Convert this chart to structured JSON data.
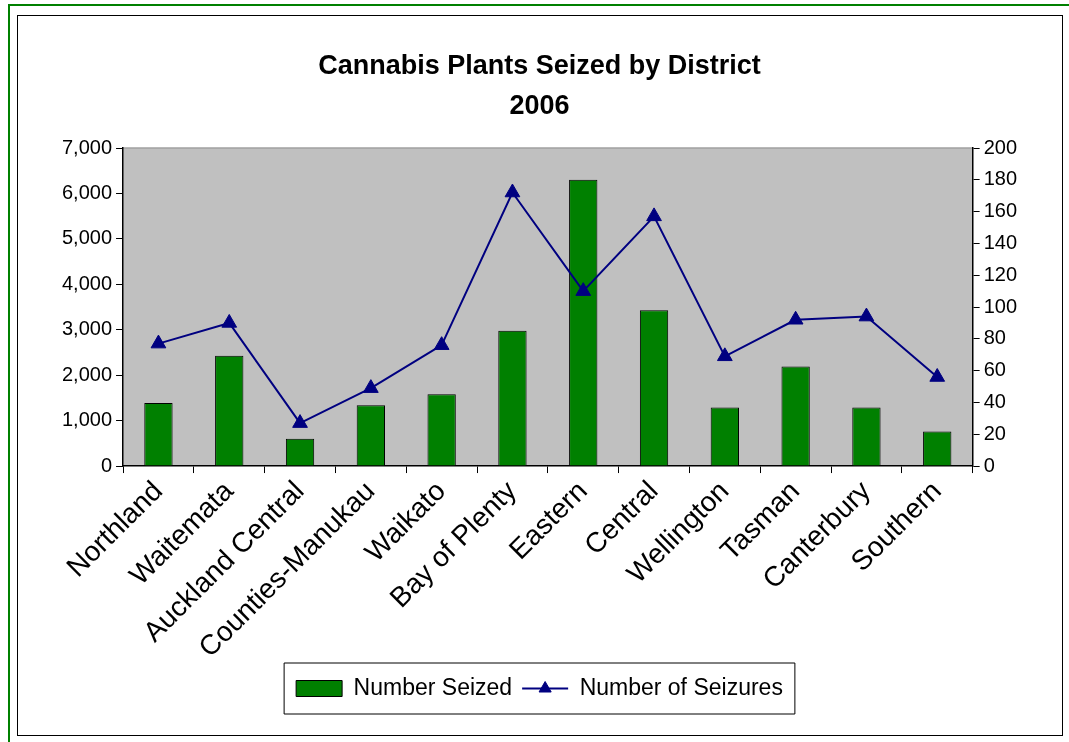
{
  "chart_data": {
    "type": "bar",
    "title": "Cannabis Plants Seized by District\n2006",
    "categories": [
      "Northland",
      "Waitemata",
      "Auckland Central",
      "Counties-Manukau",
      "Waikato",
      "Bay of Plenty",
      "Eastern",
      "Central",
      "Wellington",
      "Tasman",
      "Canterbury",
      "Southern"
    ],
    "series": [
      {
        "name": "Number Seized",
        "color": "#008000",
        "values": [
          1390,
          2430,
          600,
          1340,
          1580,
          2980,
          6300,
          3430,
          1290,
          2190,
          1290,
          760
        ]
      },
      {
        "name": "Number of Seizures",
        "type": "line",
        "axis": "y2",
        "color": "#000080",
        "values": [
          77,
          90,
          27,
          49,
          76,
          172,
          110,
          157,
          69,
          92,
          94,
          56
        ]
      }
    ],
    "ylim": [
      0,
      7000
    ],
    "yticks": [
      0,
      {
        "value": 1000,
        "label": "1,000"
      },
      {
        "value": 2000,
        "label": "2,000"
      },
      {
        "value": 3000,
        "label": "3,000"
      },
      {
        "value": 4000,
        "label": "4,000"
      },
      {
        "value": 5000,
        "label": "5,000"
      },
      {
        "value": 6000,
        "label": "6,000"
      },
      {
        "value": 7000,
        "label": "7,000"
      }
    ],
    "y2lim": [
      0,
      200
    ],
    "y2ticks": [
      0,
      20,
      40,
      60,
      80,
      100,
      120,
      140,
      160,
      180,
      200
    ],
    "legend": "bottom",
    "grid": false,
    "marker": "triangle"
  }
}
